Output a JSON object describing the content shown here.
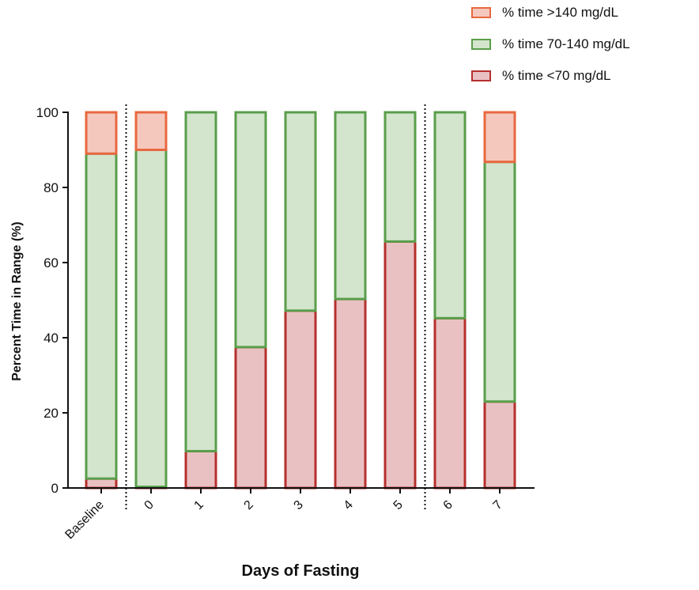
{
  "chart_data": {
    "type": "bar",
    "stacked": true,
    "title": "",
    "xlabel": "Days of Fasting",
    "ylabel": "Percent Time in Range (%)",
    "ylim": [
      0,
      100
    ],
    "yticks": [
      0,
      20,
      40,
      60,
      80,
      100
    ],
    "categories": [
      "Baseline",
      "0",
      "1",
      "2",
      "3",
      "4",
      "5",
      "6",
      "7"
    ],
    "separators_after": [
      "Baseline",
      "5"
    ],
    "legend_position": "top-right",
    "series": [
      {
        "name": "% time <70 mg/dL",
        "values": [
          2.5,
          0.3,
          9.8,
          37.5,
          47.2,
          50.3,
          65.6,
          45.2,
          23.0
        ],
        "stroke": "#b5302e",
        "fill": "#eac1c2"
      },
      {
        "name": "% time 70-140 mg/dL",
        "values": [
          86.5,
          89.7,
          90.2,
          62.5,
          52.8,
          49.7,
          34.4,
          54.8,
          63.8
        ],
        "stroke": "#5a9e4b",
        "fill": "#d3e5cc"
      },
      {
        "name": "% time >140 mg/dL",
        "values": [
          11.0,
          10.0,
          0,
          0,
          0,
          0,
          0,
          0,
          13.2
        ],
        "stroke": "#e8683f",
        "fill": "#f5c8bd"
      }
    ],
    "legend_order": [
      2,
      1,
      0
    ]
  }
}
